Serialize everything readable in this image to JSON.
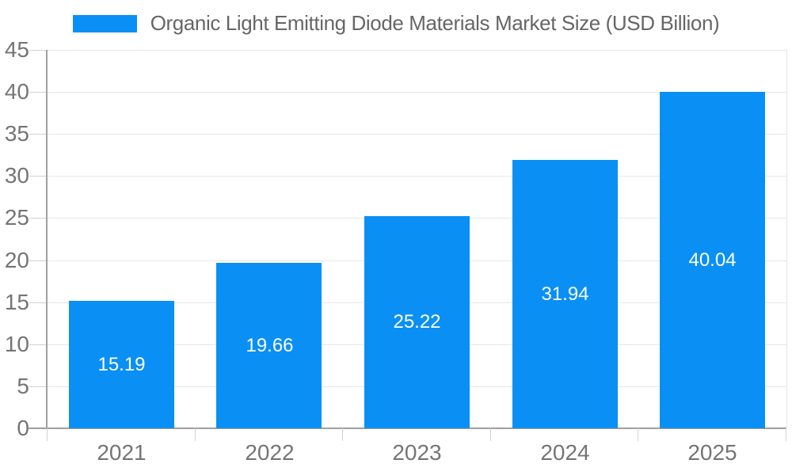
{
  "legend": {
    "label": "Organic Light Emitting Diode Materials Market Size (USD Billion)"
  },
  "chart_data": {
    "type": "bar",
    "title": "Organic Light Emitting Diode Materials Market Size (USD Billion)",
    "categories": [
      "2021",
      "2022",
      "2023",
      "2024",
      "2025"
    ],
    "values": [
      15.19,
      19.66,
      25.22,
      31.94,
      40.04
    ],
    "value_labels": [
      "15.19",
      "19.66",
      "25.22",
      "31.94",
      "40.04"
    ],
    "xlabel": "",
    "ylabel": "",
    "ylim": [
      0,
      45
    ],
    "ytick_step": 5,
    "yticks": [
      0,
      5,
      10,
      15,
      20,
      25,
      30,
      35,
      40,
      45
    ],
    "grid": true,
    "legend_position": "top-center",
    "colors": {
      "bar": "#0A90F4",
      "grid": "#E6E6E6",
      "axis": "#A0A0A0",
      "tick": "#D2D2D2",
      "tick_label": "#757575",
      "title": "#666666",
      "value_label": "#FFFFFF",
      "background": "#FFFFFF"
    }
  }
}
